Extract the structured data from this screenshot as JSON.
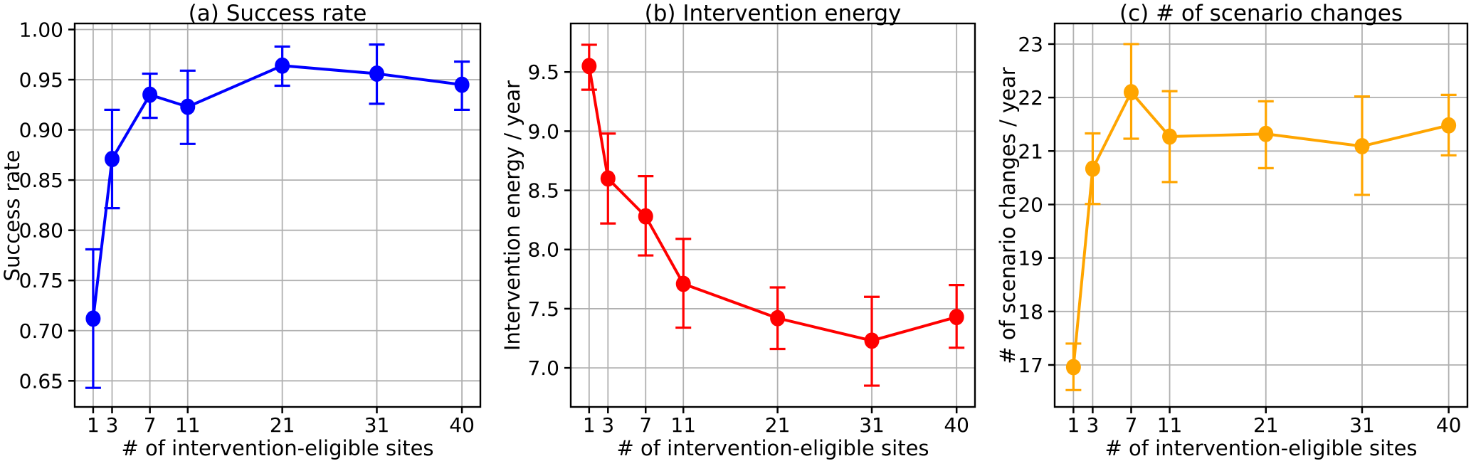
{
  "figure": {
    "background": "#ffffff",
    "grid_color": "#b0b0b0",
    "axis_color": "#000000",
    "text_color": "#000000",
    "shared_xlabel": "# of intervention-eligible sites"
  },
  "chart_data": [
    {
      "type": "line",
      "panel": "a",
      "title": "(a) Success rate",
      "ylabel": "Success rate",
      "xlabel": "# of intervention-eligible sites",
      "color": "#0000ff",
      "grid": true,
      "legend": null,
      "x": [
        1,
        3,
        7,
        11,
        21,
        31,
        40
      ],
      "xtick_labels": [
        "1",
        "3",
        "7",
        "11",
        "21",
        "31",
        "40"
      ],
      "y": [
        0.712,
        0.871,
        0.935,
        0.923,
        0.964,
        0.956,
        0.945
      ],
      "err_low": [
        0.643,
        0.822,
        0.912,
        0.886,
        0.944,
        0.926,
        0.92
      ],
      "err_high": [
        0.781,
        0.92,
        0.956,
        0.959,
        0.983,
        0.985,
        0.968
      ],
      "yticks": [
        0.65,
        0.7,
        0.75,
        0.8,
        0.85,
        0.9,
        0.95,
        1.0
      ],
      "ytick_labels": [
        "0.65",
        "0.70",
        "0.75",
        "0.80",
        "0.85",
        "0.90",
        "0.95",
        "1.00"
      ],
      "xlim": [
        -0.95,
        41.95
      ],
      "ylim": [
        0.624,
        1.006
      ]
    },
    {
      "type": "line",
      "panel": "b",
      "title": "(b) Intervention energy",
      "ylabel": "Intervention energy / year",
      "xlabel": "# of intervention-eligible sites",
      "color": "#ff0000",
      "grid": true,
      "legend": null,
      "x": [
        1,
        3,
        7,
        11,
        21,
        31,
        40
      ],
      "xtick_labels": [
        "1",
        "3",
        "7",
        "11",
        "21",
        "31",
        "40"
      ],
      "y": [
        9.55,
        8.6,
        8.28,
        7.71,
        7.42,
        7.23,
        7.43
      ],
      "err_low": [
        9.35,
        8.22,
        7.95,
        7.34,
        7.16,
        6.85,
        7.17
      ],
      "err_high": [
        9.73,
        8.98,
        8.62,
        8.09,
        7.68,
        7.6,
        7.7
      ],
      "yticks": [
        7.0,
        7.5,
        8.0,
        8.5,
        9.0,
        9.5
      ],
      "ytick_labels": [
        "7.0",
        "7.5",
        "8.0",
        "8.5",
        "9.0",
        "9.5"
      ],
      "xlim": [
        -0.95,
        41.95
      ],
      "ylim": [
        6.67,
        9.91
      ]
    },
    {
      "type": "line",
      "panel": "c",
      "title": "(c) # of scenario changes",
      "ylabel": "# of scenario changes / year",
      "xlabel": "# of intervention-eligible sites",
      "color": "#ffa500",
      "grid": true,
      "legend": null,
      "x": [
        1,
        3,
        7,
        11,
        21,
        31,
        40
      ],
      "xtick_labels": [
        "1",
        "3",
        "7",
        "11",
        "21",
        "31",
        "40"
      ],
      "y": [
        16.96,
        20.67,
        22.1,
        21.27,
        21.32,
        21.09,
        21.48
      ],
      "err_low": [
        16.53,
        20.01,
        21.23,
        20.42,
        20.68,
        20.18,
        20.92
      ],
      "err_high": [
        17.4,
        21.33,
        23.0,
        22.12,
        21.93,
        22.02,
        22.05
      ],
      "yticks": [
        17,
        18,
        19,
        20,
        21,
        22,
        23
      ],
      "ytick_labels": [
        "17",
        "18",
        "19",
        "20",
        "21",
        "22",
        "23"
      ],
      "xlim": [
        -0.95,
        41.95
      ],
      "ylim": [
        16.215,
        23.385
      ]
    }
  ]
}
